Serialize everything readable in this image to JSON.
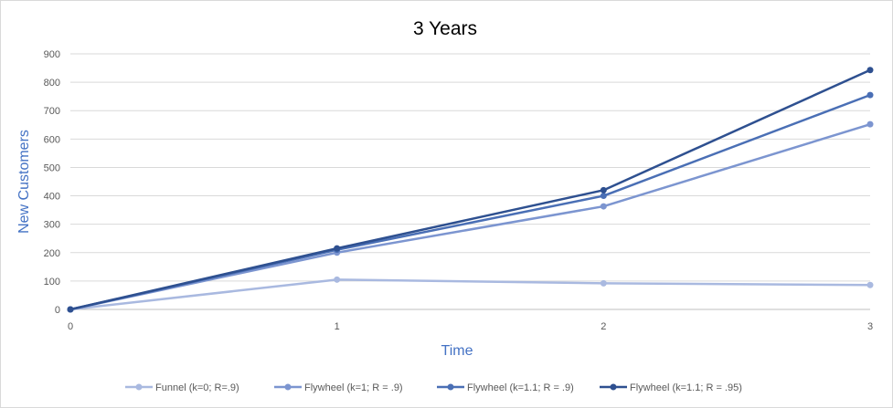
{
  "chart_data": {
    "type": "line",
    "title": "3 Years",
    "xlabel": "Time",
    "ylabel": "New Customers",
    "x": [
      0,
      1,
      2,
      3
    ],
    "x_tick_labels": [
      "0",
      "1",
      "2",
      "3"
    ],
    "ylim": [
      0,
      900
    ],
    "y_ticks": [
      0,
      100,
      200,
      300,
      400,
      500,
      600,
      700,
      800,
      900
    ],
    "grid": true,
    "legend_position": "bottom",
    "axis_label_color": "#4472c4",
    "series": [
      {
        "name": "Funnel (k=0; R=.9)",
        "color": "#a9b9e0",
        "values": [
          0,
          105,
          92,
          86
        ]
      },
      {
        "name": "Flywheel (k=1; R = .9)",
        "color": "#7c95d0",
        "values": [
          0,
          200,
          363,
          652
        ]
      },
      {
        "name": "Flywheel (k=1.1; R = .9)",
        "color": "#4a6fb5",
        "values": [
          0,
          210,
          400,
          755
        ]
      },
      {
        "name": "Flywheel (k=1.1; R = .95)",
        "color": "#2e5090",
        "values": [
          0,
          215,
          420,
          843
        ]
      }
    ]
  }
}
